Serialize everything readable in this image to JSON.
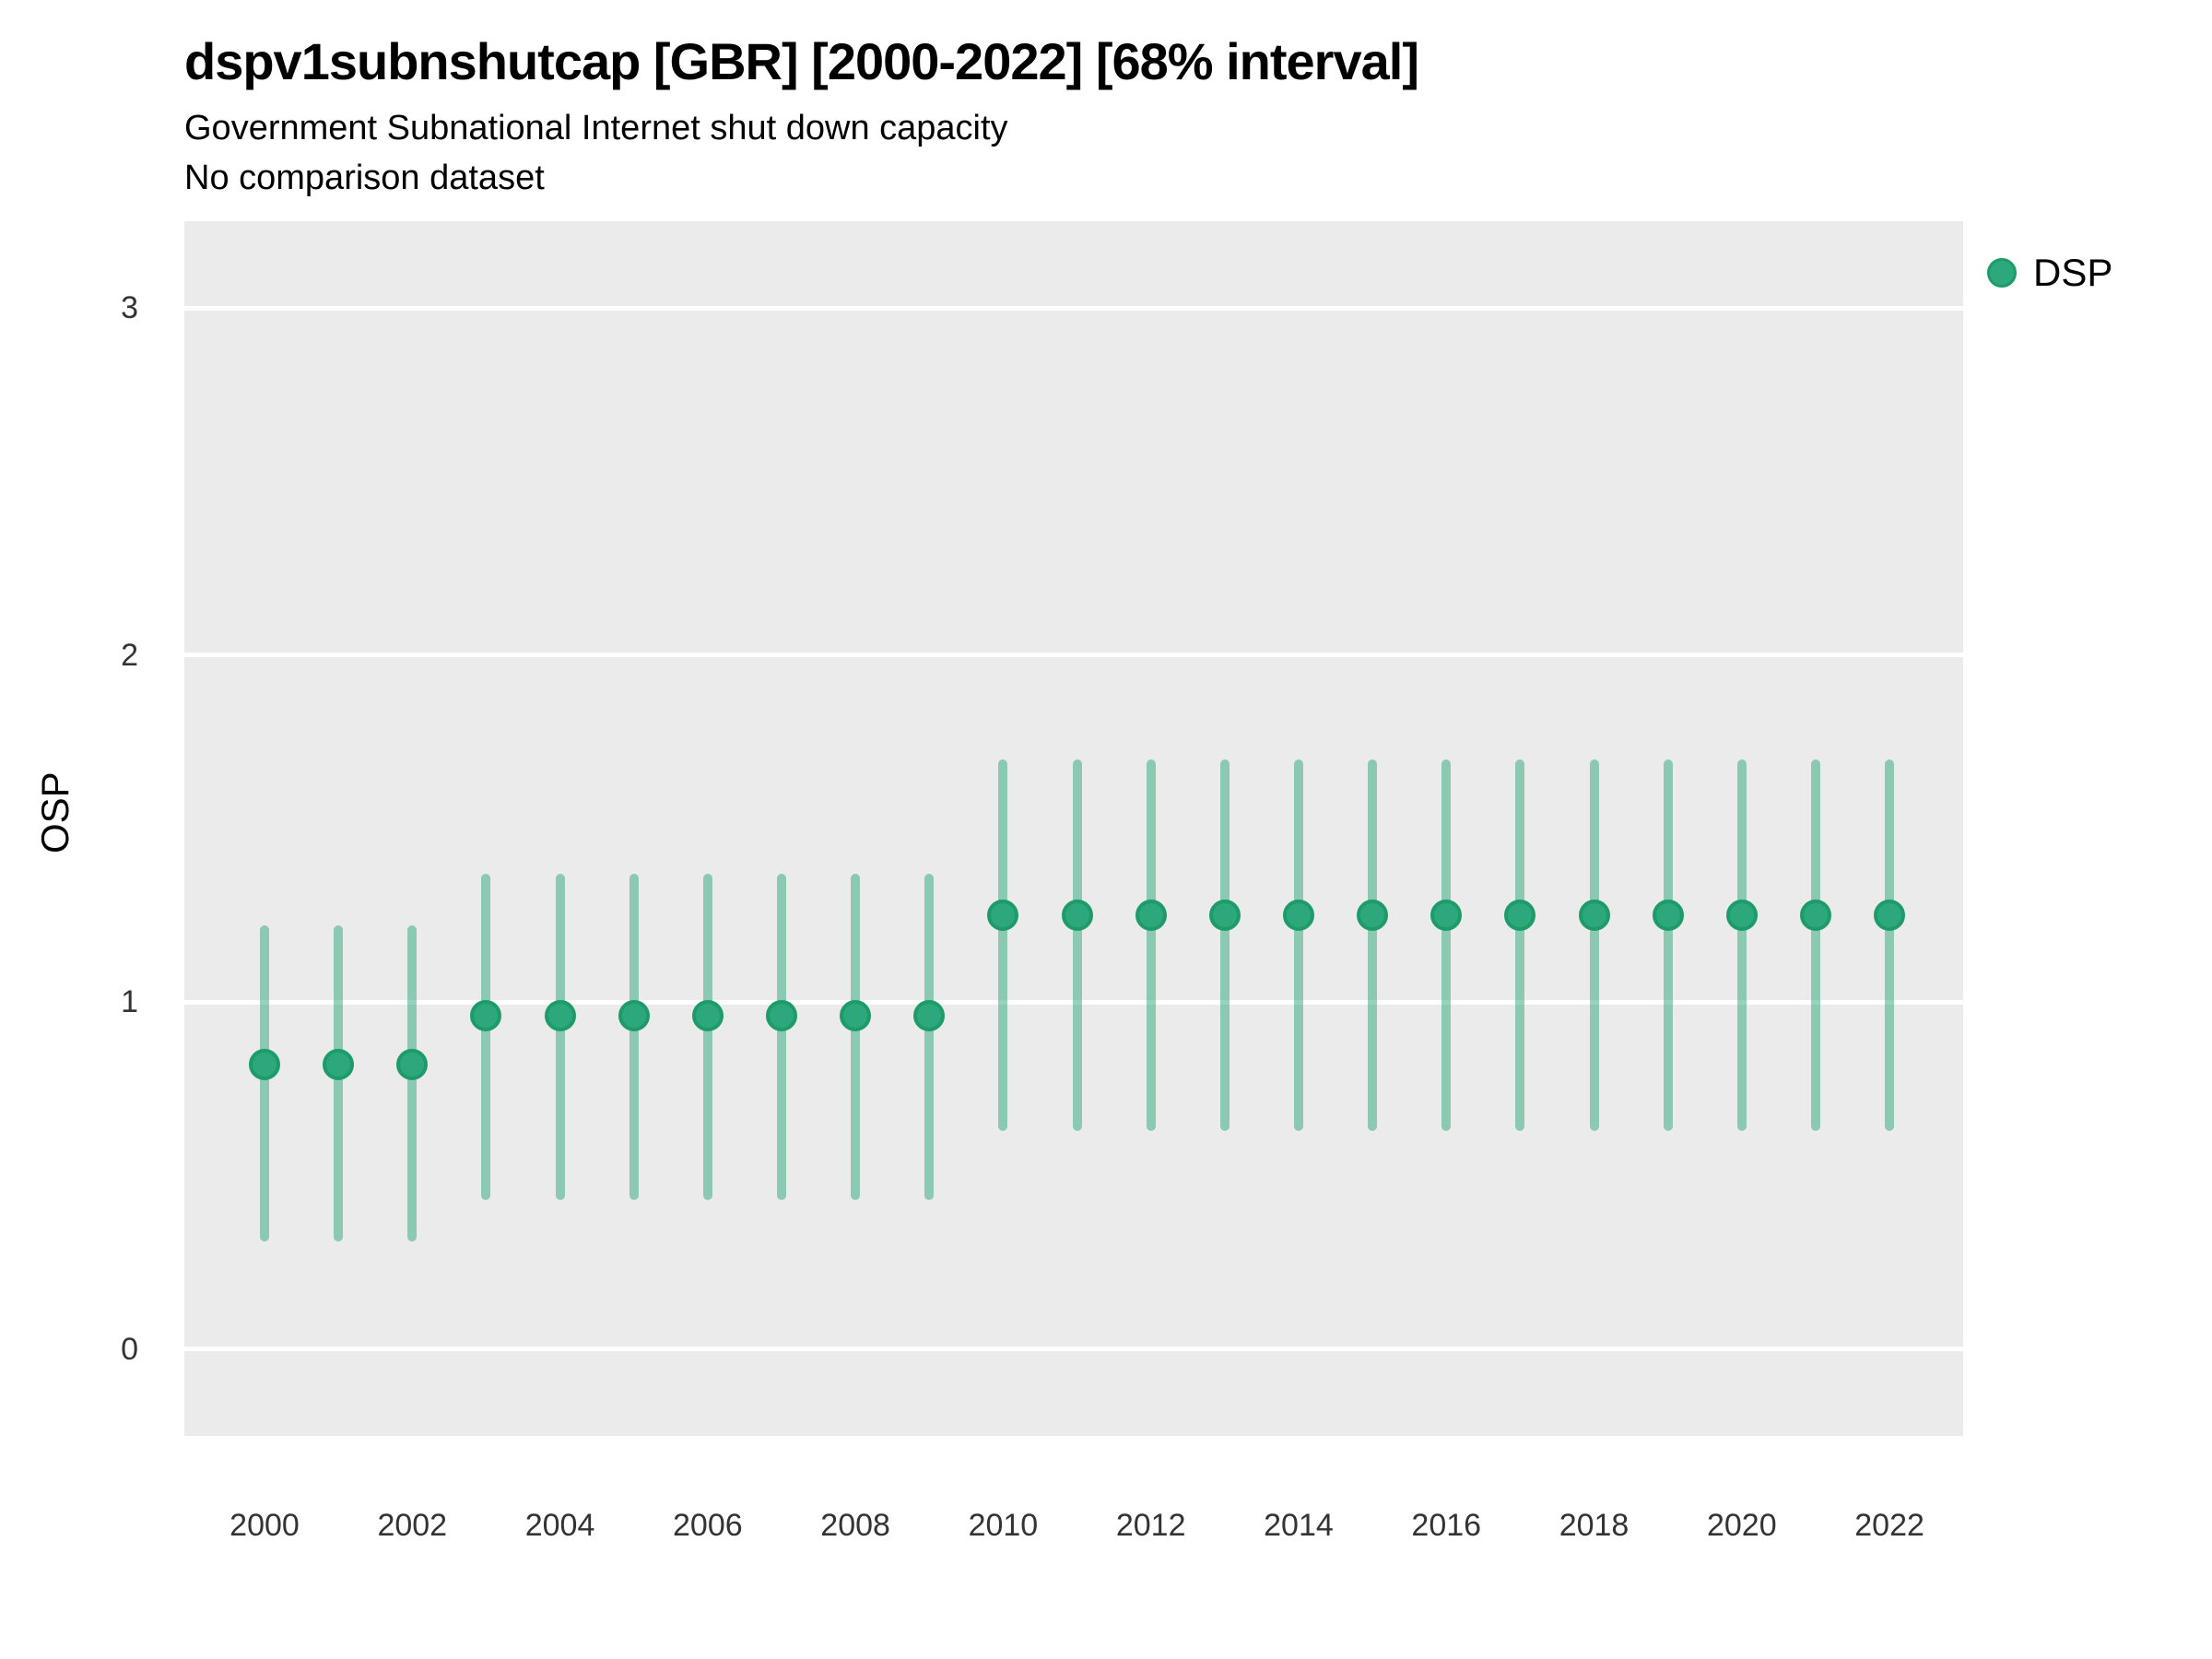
{
  "header": {
    "title": "dspv1subnshutcap [GBR] [2000-2022] [68% interval]",
    "subtitle": "Government Subnational Internet shut down capacity",
    "comparison_note": "No comparison dataset"
  },
  "legend": {
    "items": [
      {
        "label": "DSP",
        "color": "#2da77c"
      }
    ]
  },
  "axes": {
    "y_title": "OSP",
    "y_tick_labels": [
      "0",
      "1",
      "2",
      "3"
    ],
    "x_tick_labels": [
      "2000",
      "2002",
      "2004",
      "2006",
      "2008",
      "2010",
      "2012",
      "2014",
      "2016",
      "2018",
      "2020",
      "2022"
    ]
  },
  "colors": {
    "panel_background": "#ebebeb",
    "gridline": "#ffffff",
    "point_fill": "#2da77c",
    "point_stroke": "#1d9c69",
    "interval_bar": "rgba(45,167,124,0.5)"
  },
  "chart_data": {
    "type": "pointrange",
    "title": "dspv1subnshutcap [GBR] [2000-2022] [68% interval]",
    "subtitle": "Government Subnational Internet shut down capacity",
    "note": "No comparison dataset",
    "xlabel": "",
    "ylabel": "OSP",
    "interval_level": "68%",
    "ylim": [
      -0.25,
      3.25
    ],
    "y_ticks": [
      0,
      1,
      2,
      3
    ],
    "x_ticks": [
      2000,
      2002,
      2004,
      2006,
      2008,
      2010,
      2012,
      2014,
      2016,
      2018,
      2020,
      2022
    ],
    "legend_position": "right",
    "grid": "major-horizontal-only",
    "series": [
      {
        "name": "DSP",
        "points": [
          {
            "year": 2000,
            "est": 0.82,
            "lo": 0.31,
            "hi": 1.22
          },
          {
            "year": 2001,
            "est": 0.82,
            "lo": 0.31,
            "hi": 1.22
          },
          {
            "year": 2002,
            "est": 0.82,
            "lo": 0.31,
            "hi": 1.22
          },
          {
            "year": 2003,
            "est": 0.96,
            "lo": 0.43,
            "hi": 1.37
          },
          {
            "year": 2004,
            "est": 0.96,
            "lo": 0.43,
            "hi": 1.37
          },
          {
            "year": 2005,
            "est": 0.96,
            "lo": 0.43,
            "hi": 1.37
          },
          {
            "year": 2006,
            "est": 0.96,
            "lo": 0.43,
            "hi": 1.37
          },
          {
            "year": 2007,
            "est": 0.96,
            "lo": 0.43,
            "hi": 1.37
          },
          {
            "year": 2008,
            "est": 0.96,
            "lo": 0.43,
            "hi": 1.37
          },
          {
            "year": 2009,
            "est": 0.96,
            "lo": 0.43,
            "hi": 1.37
          },
          {
            "year": 2010,
            "est": 1.25,
            "lo": 0.63,
            "hi": 1.7
          },
          {
            "year": 2011,
            "est": 1.25,
            "lo": 0.63,
            "hi": 1.7
          },
          {
            "year": 2012,
            "est": 1.25,
            "lo": 0.63,
            "hi": 1.7
          },
          {
            "year": 2013,
            "est": 1.25,
            "lo": 0.63,
            "hi": 1.7
          },
          {
            "year": 2014,
            "est": 1.25,
            "lo": 0.63,
            "hi": 1.7
          },
          {
            "year": 2015,
            "est": 1.25,
            "lo": 0.63,
            "hi": 1.7
          },
          {
            "year": 2016,
            "est": 1.25,
            "lo": 0.63,
            "hi": 1.7
          },
          {
            "year": 2017,
            "est": 1.25,
            "lo": 0.63,
            "hi": 1.7
          },
          {
            "year": 2018,
            "est": 1.25,
            "lo": 0.63,
            "hi": 1.7
          },
          {
            "year": 2019,
            "est": 1.25,
            "lo": 0.63,
            "hi": 1.7
          },
          {
            "year": 2020,
            "est": 1.25,
            "lo": 0.63,
            "hi": 1.7
          },
          {
            "year": 2021,
            "est": 1.25,
            "lo": 0.63,
            "hi": 1.7
          },
          {
            "year": 2022,
            "est": 1.25,
            "lo": 0.63,
            "hi": 1.7
          }
        ]
      }
    ]
  }
}
